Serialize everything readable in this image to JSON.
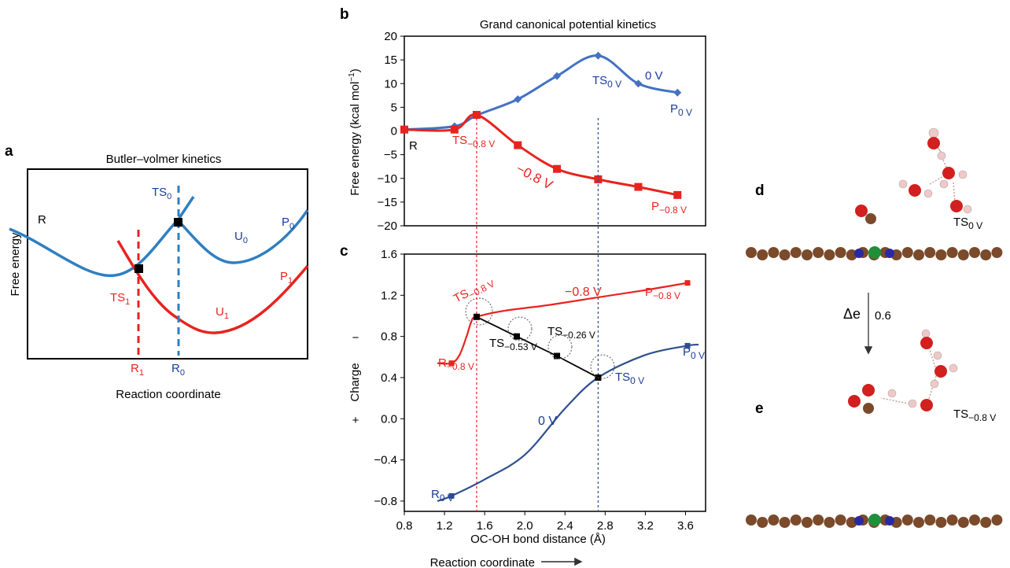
{
  "colors": {
    "blue": "#4472c4",
    "red": "#e8231f",
    "black": "#000000",
    "lblue": "#1a3c9a",
    "lred": "#e8231f"
  },
  "panel_a": {
    "letter": "a",
    "title": "Butler–volmer kinetics",
    "ylabel": "Free energy",
    "xlabel": "Reaction coordinate",
    "labels": {
      "R": "R",
      "TS0": "TS",
      "TS0_sub": "0",
      "P0": "P",
      "P0_sub": "0",
      "U0": "U",
      "U0_sub": "0",
      "P1": "P",
      "P1_sub": "1",
      "TS1": "TS",
      "TS1_sub": "1",
      "U1": "U",
      "U1_sub": "1",
      "R1": "R",
      "R1_sub": "1",
      "R0": "R",
      "R0_sub": "0"
    }
  },
  "panel_b": {
    "letter": "b",
    "title": "Grand canonical potential kinetics",
    "ylabel": "Free energy (kcal mol",
    "ylabel_sup": "−1",
    "ylabel_end": ")",
    "labels": {
      "R": "R",
      "TS0V": "TS",
      "TS0V_sub": "0 V",
      "zeroV": "0 V",
      "P0V": "P",
      "P0V_sub": "0 V",
      "TS08": "TS",
      "TS08_sub": "−0.8 V",
      "neg08": "−0.8 V",
      "P08": "P",
      "P08_sub": "−0.8 V"
    }
  },
  "panel_c": {
    "letter": "c",
    "xlabel": "OC-OH bond distance (Å)",
    "below_xlabel": "Reaction coordinate",
    "charge_minus": "−",
    "charge_label": "Charge",
    "charge_plus": "+",
    "labels": {
      "TS08": "TS",
      "TS08_sub": "−0.8 V",
      "neg08": "−0.8 V",
      "P08": "P",
      "P08_sub": "−0.8 V",
      "TS053": "TS",
      "TS053_sub": "−0.53 V",
      "TS026": "TS",
      "TS026_sub": "−0.26 V",
      "P0V": "P",
      "P0V_sub": "0 V",
      "R08": "R",
      "R08_sub": "−0.8 V",
      "TS0V": "TS",
      "TS0V_sub": "0 V",
      "zeroV": "0 V",
      "R0V": "R",
      "R0V_sub": "0 V"
    }
  },
  "panel_d": {
    "letter": "d",
    "label": "TS",
    "label_sub": "0 V"
  },
  "panel_e": {
    "letter": "e",
    "label": "TS",
    "label_sub": "−0.8 V"
  },
  "arrow": {
    "delta": "Δe",
    "value": "0.6"
  },
  "chart_data": [
    {
      "type": "line",
      "panel": "a",
      "title": "Butler–volmer kinetics",
      "xlabel": "Reaction coordinate",
      "ylabel": "Free energy",
      "series": [
        {
          "name": "U0",
          "color": "#2f7fc1"
        },
        {
          "name": "U1",
          "color": "#e8231f"
        }
      ]
    },
    {
      "type": "line",
      "panel": "b",
      "title": "Grand canonical potential kinetics",
      "xlabel": "OC-OH bond distance (Å)",
      "ylabel": "Free energy (kcal mol−1)",
      "x": [
        0.8,
        1.3,
        1.52,
        1.93,
        2.32,
        2.73,
        3.13,
        3.52
      ],
      "xlim": [
        0.8,
        3.8
      ],
      "ylim": [
        -20,
        20
      ],
      "yticks": [
        20,
        15,
        10,
        5,
        0,
        -5,
        -10,
        -15,
        -20
      ],
      "series": [
        {
          "name": "0 V",
          "color": "#4472c4",
          "marker": "diamond",
          "x": [
            0.8,
            1.3,
            1.52,
            1.93,
            2.32,
            2.73,
            3.13,
            3.52
          ],
          "y": [
            0.3,
            1.0,
            3.3,
            6.7,
            11.6,
            15.9,
            10.0,
            8.1
          ]
        },
        {
          "name": "−0.8 V",
          "color": "#e8231f",
          "marker": "square",
          "x": [
            0.8,
            1.3,
            1.52,
            1.93,
            2.32,
            2.73,
            3.13,
            3.52
          ],
          "y": [
            0.3,
            0.3,
            3.4,
            -3.0,
            -8.0,
            -10.2,
            -11.8,
            -13.5
          ]
        }
      ]
    },
    {
      "type": "line",
      "panel": "c",
      "xlabel": "OC-OH bond distance (Å)",
      "ylabel": "Charge",
      "xlim": [
        0.8,
        3.8
      ],
      "ylim": [
        -0.9,
        1.6
      ],
      "xticks": [
        0.8,
        1.2,
        1.6,
        2.0,
        2.4,
        2.8,
        3.2,
        3.6
      ],
      "yticks": [
        1.6,
        1.2,
        0.8,
        0.4,
        0.0,
        -0.4,
        -0.8
      ],
      "series": [
        {
          "name": "−0.8 V",
          "color": "#e8231f",
          "x": [
            1.13,
            1.27,
            1.35,
            1.42,
            1.47,
            1.52,
            1.8,
            2.2,
            2.73,
            3.2,
            3.62
          ],
          "y": [
            0.54,
            0.54,
            0.62,
            0.8,
            0.95,
            0.99,
            1.05,
            1.1,
            1.18,
            1.25,
            1.32
          ]
        },
        {
          "name": "0 V",
          "color": "#2d4f8f",
          "x": [
            1.13,
            1.27,
            1.6,
            2.0,
            2.4,
            2.73,
            3.2,
            3.62,
            3.73
          ],
          "y": [
            -0.8,
            -0.75,
            -0.59,
            -0.35,
            0.1,
            0.4,
            0.62,
            0.71,
            0.72
          ]
        },
        {
          "name": "TS path",
          "color": "#000000",
          "x": [
            1.52,
            1.92,
            2.32,
            2.73
          ],
          "y": [
            0.99,
            0.8,
            0.61,
            0.4
          ]
        }
      ],
      "markers": [
        {
          "x": 1.27,
          "y": 0.54,
          "color": "#e8231f"
        },
        {
          "x": 3.62,
          "y": 1.32,
          "color": "#e8231f"
        },
        {
          "x": 1.27,
          "y": -0.75,
          "color": "#2d4f8f"
        },
        {
          "x": 3.62,
          "y": 0.71,
          "color": "#2d4f8f"
        }
      ],
      "guides": [
        {
          "x": 1.52,
          "color": "#e8231f"
        },
        {
          "x": 2.73,
          "color": "#2d4f8f"
        }
      ]
    }
  ]
}
